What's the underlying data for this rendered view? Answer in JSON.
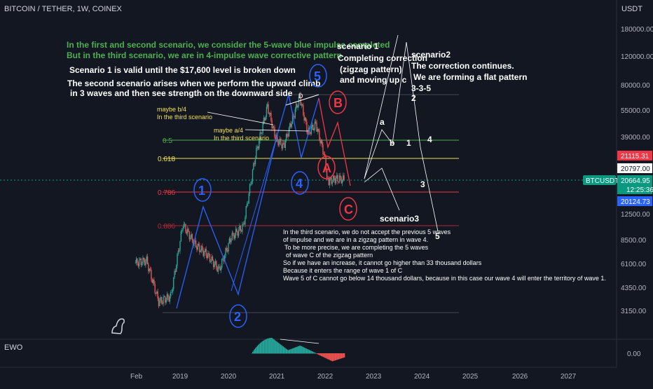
{
  "header": {
    "symbol_title": "BITCOIN / TETHER, 1W, COINEX",
    "currency": "USDT",
    "indicator": "EWO"
  },
  "price_axis": {
    "ticks": [
      "180000.00",
      "120000.00",
      "80000.00",
      "55000.00",
      "39000.00",
      "21115.31",
      "20797.00",
      "20664.95",
      "12:25:36",
      "20124.73",
      "12500.00",
      "8500.00",
      "6100.00",
      "4350.00",
      "3150.00"
    ],
    "ewo_tick": "0.00",
    "badges": {
      "high": {
        "text": "21115.31",
        "color": "#f23645"
      },
      "prev": {
        "text": "20797.00",
        "color": "#ffffff"
      },
      "symbol": {
        "text": "BTCUSDT",
        "color": "#089981"
      },
      "last": {
        "text": "20664.95",
        "color": "#089981"
      },
      "timer": {
        "text": "12:25:36",
        "color": "#089981"
      },
      "low": {
        "text": "20124.73",
        "color": "#2962ff"
      }
    }
  },
  "time_axis": [
    "Feb",
    "2019",
    "2020",
    "2021",
    "2022",
    "2023",
    "2024",
    "2025",
    "2026",
    "2027"
  ],
  "fib_levels": [
    {
      "label": "0.5",
      "color": "#4caf50"
    },
    {
      "label": "0.618",
      "color": "#f5e04b"
    },
    {
      "label": "0.786",
      "color": "#f23645"
    },
    {
      "label": "0.886",
      "color": "#b22833"
    }
  ],
  "annotations": {
    "green_1": "In the first and second scenario, we consider the 5-wave blue impulse completed",
    "green_2": "But in the third scenario, we are in 4-impulse wave corrective pattern",
    "scenario1_valid": "Scenario 1 is valid until the $17,600 level is broken down",
    "second_a": "The second scenario arises when we perform the upward climb",
    "second_b": "in 3 waves and then see strength on the downward side",
    "maybe_b4_a": "maybe b/4",
    "maybe_b4_b": "In the third scenario",
    "maybe_a4_a": "maybe a/4",
    "maybe_a4_b": "In the third scenario",
    "scen1_title": "scenario 1",
    "scen1_l1": "Completing correction",
    "scen1_l2": "(zigzag pattern)",
    "scen1_l3": "and moving up c",
    "scen2_title": "scenario2",
    "scen2_l1": "The correction continues.",
    "scen2_l2": "We are forming a flat pattern",
    "scen2_l3": "3-3-5",
    "scen3_title": "scenario3",
    "scen3_l1": "In the third scenario, we do not accept the previous 5 waves",
    "scen3_l2": "of impulse and we are in a zigzag pattern in wave 4.",
    "scen3_l3": "To be more precise, we are completing the 5 waves",
    "scen3_l4": "of wave C of the zigzag pattern",
    "scen3_l5": "So if we have an increase, it cannot go higher than 33 thousand dollars",
    "scen3_l6": "Because it enters the range of wave 1 of C",
    "scen3_l7": "Wave 5 of C cannot go below 14 thousand dollars, because in this case our wave 4 will enter the territory of wave 1."
  },
  "wave_labels": {
    "w1": "1",
    "w2": "2",
    "w4": "4",
    "w5": "5",
    "wA": "A",
    "wB": "B",
    "wC": "C",
    "wa": "a",
    "wb": "b",
    "wd": "D",
    "s1": "1",
    "s2": "2",
    "s3": "3",
    "s4": "4",
    "s5": "5"
  },
  "colors": {
    "background": "#131722",
    "up": "#26a69a",
    "down": "#ef5350",
    "blue": "#2962ff",
    "red": "#f23645",
    "green_text": "#4caf50"
  },
  "chart_data": {
    "type": "candlestick",
    "title": "BITCOIN / TETHER, 1W, COINEX",
    "yscale": "log",
    "ylabel": "USDT",
    "x": [
      "2018-06",
      "2018-09",
      "2018-12",
      "2019-03",
      "2019-06",
      "2019-09",
      "2019-12",
      "2020-03",
      "2020-06",
      "2020-09",
      "2020-12",
      "2021-03",
      "2021-05",
      "2021-07",
      "2021-09",
      "2021-11",
      "2022-01",
      "2022-03",
      "2022-05",
      "2022-06",
      "2022-08",
      "2022-10"
    ],
    "close": [
      6400,
      6600,
      3700,
      4000,
      11000,
      8300,
      7200,
      5800,
      9200,
      10700,
      29000,
      58000,
      37000,
      33000,
      47000,
      66000,
      40000,
      45000,
      30000,
      20000,
      21000,
      20665
    ],
    "last_price": 20664.95,
    "ewo": {
      "peaks": [
        {
          "x": "2021-04",
          "value": 1
        },
        {
          "x": "2021-11",
          "value": 0.5
        }
      ],
      "trough": {
        "x": "2022-07",
        "value": -0.5
      }
    }
  }
}
